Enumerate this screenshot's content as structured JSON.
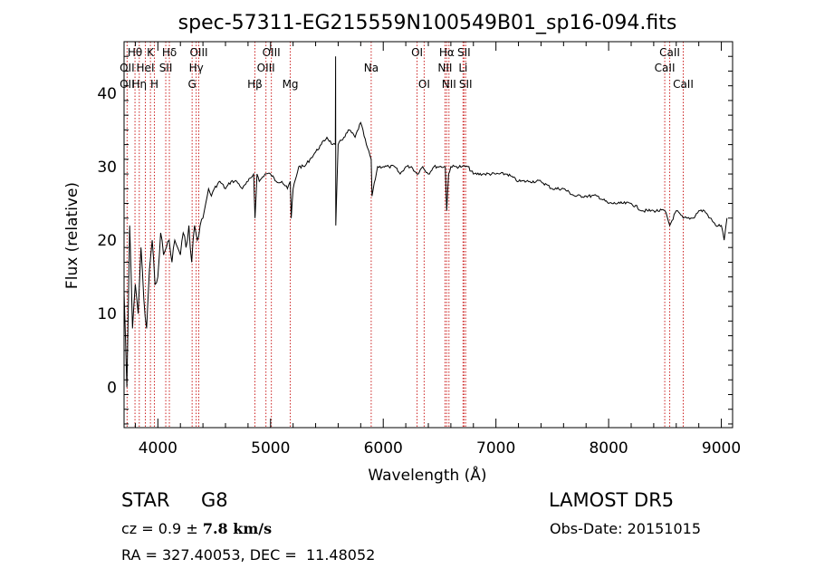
{
  "chart_data": {
    "type": "line",
    "title": "spec-57311-EG215559N100549B01_sp16-094.fits",
    "xlabel": "Wavelength (Å)",
    "ylabel": "Flux (relative)",
    "xlim": [
      3700,
      9100
    ],
    "ylim": [
      -5.5,
      47
    ],
    "xticks": [
      4000,
      5000,
      6000,
      7000,
      8000,
      9000
    ],
    "yticks": [
      0,
      10,
      20,
      30,
      40
    ],
    "grid": false,
    "series": [
      {
        "x": [
          3700,
          3725,
          3750,
          3775,
          3800,
          3825,
          3850,
          3875,
          3900,
          3925,
          3950,
          3975,
          4000,
          4025,
          4050,
          4075,
          4100,
          4125,
          4150,
          4175,
          4200,
          4225,
          4250,
          4275,
          4300,
          4325,
          4350,
          4375,
          4400,
          4425,
          4450,
          4475,
          4500,
          4550,
          4600,
          4650,
          4700,
          4750,
          4800,
          4850,
          4862,
          4880,
          4900,
          4950,
          5000,
          5050,
          5100,
          5150,
          5175,
          5183,
          5200,
          5250,
          5300,
          5350,
          5400,
          5450,
          5500,
          5550,
          5575,
          5577,
          5579,
          5600,
          5650,
          5700,
          5750,
          5800,
          5850,
          5893,
          5900,
          5950,
          6000,
          6050,
          6100,
          6150,
          6200,
          6250,
          6300,
          6350,
          6400,
          6450,
          6500,
          6550,
          6563,
          6580,
          6600,
          6650,
          6700,
          6750,
          6800,
          6900,
          7000,
          7100,
          7200,
          7300,
          7400,
          7500,
          7600,
          7700,
          7800,
          7900,
          8000,
          8100,
          8200,
          8300,
          8400,
          8500,
          8542,
          8600,
          8662,
          8700,
          8750,
          8800,
          8850,
          8900,
          8950,
          9000,
          9025,
          9050
        ],
        "values": [
          13,
          0,
          22,
          8,
          14,
          10,
          19,
          12,
          8,
          16,
          20,
          14,
          15,
          21,
          18,
          19,
          20,
          17,
          20,
          19,
          18,
          21,
          19,
          22,
          17,
          22,
          20,
          22,
          23,
          25,
          27,
          26,
          27,
          28,
          27,
          28,
          28,
          27,
          28,
          29,
          23,
          29,
          28,
          29,
          29,
          28,
          28,
          27,
          28,
          23,
          27,
          30,
          30,
          31,
          32,
          33,
          34,
          33,
          33,
          45,
          22,
          33,
          34,
          35,
          34,
          36,
          33,
          31,
          26,
          30,
          30,
          30,
          30,
          29,
          30,
          30,
          29,
          30,
          29,
          30,
          30,
          30,
          24,
          29,
          30,
          30,
          30,
          30,
          29,
          29,
          29,
          29,
          28,
          28,
          28,
          27,
          27,
          26,
          26,
          26,
          25,
          25,
          25,
          24,
          24,
          24,
          22,
          24,
          23,
          23,
          23,
          24,
          24,
          23,
          22,
          22,
          20,
          23
        ]
      }
    ],
    "annotations": [
      {
        "label": "Hθ",
        "x": 3797,
        "row": 0
      },
      {
        "label": "K",
        "x": 3934,
        "row": 0
      },
      {
        "label": "Hδ",
        "x": 4102,
        "row": 0
      },
      {
        "label": "OIII",
        "x": 4363,
        "row": 0
      },
      {
        "label": "OIII",
        "x": 5007,
        "row": 0
      },
      {
        "label": "OI",
        "x": 6300,
        "row": 0
      },
      {
        "label": "Hα",
        "x": 6563,
        "row": 0
      },
      {
        "label": "SII",
        "x": 6716,
        "row": 0
      },
      {
        "label": "CaII",
        "x": 8542,
        "row": 0
      },
      {
        "label": "OII",
        "x": 3727,
        "row": 1
      },
      {
        "label": "HeI",
        "x": 3889,
        "row": 1
      },
      {
        "label": "SII",
        "x": 4070,
        "row": 1
      },
      {
        "label": "Hγ",
        "x": 4340,
        "row": 1
      },
      {
        "label": "OIII",
        "x": 4959,
        "row": 1
      },
      {
        "label": "Na",
        "x": 5893,
        "row": 1
      },
      {
        "label": "NII",
        "x": 6548,
        "row": 1
      },
      {
        "label": "Li",
        "x": 6708,
        "row": 1
      },
      {
        "label": "CaII",
        "x": 8498,
        "row": 1
      },
      {
        "label": "OII",
        "x": 3727,
        "row": 2
      },
      {
        "label": "Hη",
        "x": 3835,
        "row": 2
      },
      {
        "label": "H",
        "x": 3969,
        "row": 2
      },
      {
        "label": "G",
        "x": 4304,
        "row": 2
      },
      {
        "label": "Hβ",
        "x": 4861,
        "row": 2
      },
      {
        "label": "Mg",
        "x": 5175,
        "row": 2
      },
      {
        "label": "OI",
        "x": 6363,
        "row": 2
      },
      {
        "label": "NII",
        "x": 6583,
        "row": 2
      },
      {
        "label": "SII",
        "x": 6731,
        "row": 2
      },
      {
        "label": "CaII",
        "x": 8662,
        "row": 2
      }
    ],
    "line_color": "#000000",
    "marker_color": "#cc2222"
  },
  "info": {
    "class": "STAR",
    "subclass": "G8",
    "survey": "LAMOST DR5",
    "cz_prefix": "cz = ",
    "cz_value": "0.9",
    "cz_pm": " ± ",
    "cz_error": "7.8",
    "cz_unit": " km/s",
    "obs_date": "Obs-Date: 20151015",
    "ra_dec": "RA = 327.40053, DEC =  11.48052"
  }
}
